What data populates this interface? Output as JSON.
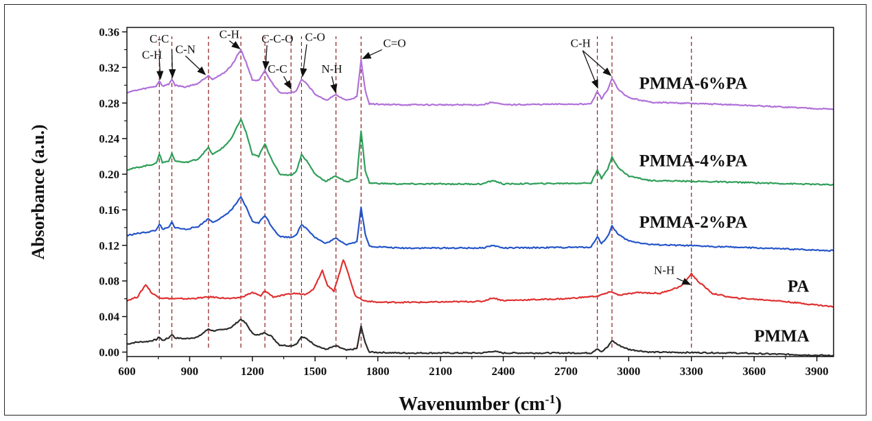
{
  "chart_data": {
    "type": "line",
    "xlabel": "Wavenumber (cm",
    "xlabel_sup": "-1",
    "xlabel_tail": ")",
    "ylabel": "Absorbance (a.u.)",
    "xlim": [
      600,
      3980
    ],
    "ylim": [
      -0.005,
      0.365
    ],
    "x_ticks": [
      600,
      900,
      1200,
      1500,
      1800,
      2100,
      2400,
      2700,
      3000,
      3300,
      3600,
      3900
    ],
    "y_ticks": [
      "0.00",
      "0.04",
      "0.08",
      "0.12",
      "0.16",
      "0.20",
      "0.24",
      "0.28",
      "0.32",
      "0.36"
    ],
    "dashed_lines_x": [
      755,
      815,
      990,
      1145,
      1260,
      1385,
      1435,
      1600,
      1720,
      2850,
      2920,
      3300
    ],
    "series": [
      {
        "name": "PMMA",
        "color": "#2b2b2b",
        "baseline": 0.0,
        "points": [
          [
            600,
            0.009
          ],
          [
            640,
            0.011
          ],
          [
            700,
            0.012
          ],
          [
            740,
            0.014
          ],
          [
            755,
            0.017
          ],
          [
            770,
            0.013
          ],
          [
            800,
            0.016
          ],
          [
            815,
            0.02
          ],
          [
            830,
            0.016
          ],
          [
            880,
            0.015
          ],
          [
            940,
            0.017
          ],
          [
            990,
            0.026
          ],
          [
            1010,
            0.024
          ],
          [
            1060,
            0.025
          ],
          [
            1100,
            0.028
          ],
          [
            1145,
            0.037
          ],
          [
            1170,
            0.032
          ],
          [
            1200,
            0.021
          ],
          [
            1230,
            0.019
          ],
          [
            1260,
            0.022
          ],
          [
            1290,
            0.018
          ],
          [
            1330,
            0.008
          ],
          [
            1385,
            0.007
          ],
          [
            1410,
            0.009
          ],
          [
            1435,
            0.017
          ],
          [
            1460,
            0.015
          ],
          [
            1500,
            0.008
          ],
          [
            1550,
            0.003
          ],
          [
            1600,
            0.007
          ],
          [
            1650,
            0.002
          ],
          [
            1700,
            0.004
          ],
          [
            1720,
            0.029
          ],
          [
            1740,
            0.01
          ],
          [
            1760,
            0.0
          ],
          [
            1900,
            -0.001
          ],
          [
            2300,
            -0.001
          ],
          [
            2350,
            0.001
          ],
          [
            2400,
            -0.001
          ],
          [
            2820,
            -0.001
          ],
          [
            2850,
            0.004
          ],
          [
            2870,
            0.0
          ],
          [
            2900,
            0.006
          ],
          [
            2920,
            0.013
          ],
          [
            2950,
            0.008
          ],
          [
            3000,
            0.003
          ],
          [
            3100,
            0.0
          ],
          [
            3500,
            -0.001
          ],
          [
            3980,
            -0.004
          ]
        ]
      },
      {
        "name": "PA",
        "color": "#e03030",
        "baseline": 0.06,
        "points": [
          [
            600,
            0.058
          ],
          [
            650,
            0.062
          ],
          [
            690,
            0.076
          ],
          [
            720,
            0.066
          ],
          [
            760,
            0.061
          ],
          [
            820,
            0.06
          ],
          [
            900,
            0.06
          ],
          [
            1000,
            0.062
          ],
          [
            1100,
            0.06
          ],
          [
            1150,
            0.062
          ],
          [
            1200,
            0.067
          ],
          [
            1240,
            0.063
          ],
          [
            1260,
            0.069
          ],
          [
            1300,
            0.062
          ],
          [
            1350,
            0.064
          ],
          [
            1400,
            0.066
          ],
          [
            1450,
            0.065
          ],
          [
            1490,
            0.07
          ],
          [
            1535,
            0.092
          ],
          [
            1560,
            0.075
          ],
          [
            1590,
            0.068
          ],
          [
            1635,
            0.104
          ],
          [
            1660,
            0.088
          ],
          [
            1690,
            0.064
          ],
          [
            1730,
            0.058
          ],
          [
            1800,
            0.056
          ],
          [
            2000,
            0.056
          ],
          [
            2300,
            0.057
          ],
          [
            2350,
            0.061
          ],
          [
            2400,
            0.058
          ],
          [
            2700,
            0.06
          ],
          [
            2850,
            0.063
          ],
          [
            2920,
            0.068
          ],
          [
            2950,
            0.064
          ],
          [
            3050,
            0.067
          ],
          [
            3150,
            0.066
          ],
          [
            3250,
            0.074
          ],
          [
            3300,
            0.088
          ],
          [
            3330,
            0.08
          ],
          [
            3400,
            0.066
          ],
          [
            3500,
            0.061
          ],
          [
            3700,
            0.058
          ],
          [
            3980,
            0.051
          ]
        ]
      },
      {
        "name": "PMMA-2%PA",
        "color": "#2454c8",
        "baseline": 0.12,
        "points": [
          [
            600,
            0.131
          ],
          [
            640,
            0.133
          ],
          [
            700,
            0.135
          ],
          [
            740,
            0.137
          ],
          [
            755,
            0.144
          ],
          [
            770,
            0.138
          ],
          [
            800,
            0.14
          ],
          [
            815,
            0.146
          ],
          [
            830,
            0.14
          ],
          [
            880,
            0.138
          ],
          [
            940,
            0.141
          ],
          [
            990,
            0.15
          ],
          [
            1010,
            0.146
          ],
          [
            1060,
            0.152
          ],
          [
            1100,
            0.16
          ],
          [
            1145,
            0.174
          ],
          [
            1170,
            0.163
          ],
          [
            1200,
            0.147
          ],
          [
            1230,
            0.145
          ],
          [
            1260,
            0.154
          ],
          [
            1290,
            0.142
          ],
          [
            1330,
            0.13
          ],
          [
            1385,
            0.129
          ],
          [
            1410,
            0.132
          ],
          [
            1435,
            0.143
          ],
          [
            1460,
            0.139
          ],
          [
            1500,
            0.129
          ],
          [
            1550,
            0.122
          ],
          [
            1600,
            0.128
          ],
          [
            1650,
            0.121
          ],
          [
            1700,
            0.124
          ],
          [
            1720,
            0.163
          ],
          [
            1740,
            0.132
          ],
          [
            1760,
            0.119
          ],
          [
            1900,
            0.117
          ],
          [
            2300,
            0.117
          ],
          [
            2350,
            0.12
          ],
          [
            2400,
            0.117
          ],
          [
            2820,
            0.118
          ],
          [
            2850,
            0.13
          ],
          [
            2870,
            0.122
          ],
          [
            2900,
            0.13
          ],
          [
            2920,
            0.142
          ],
          [
            2950,
            0.132
          ],
          [
            3000,
            0.125
          ],
          [
            3100,
            0.121
          ],
          [
            3500,
            0.118
          ],
          [
            3980,
            0.114
          ]
        ]
      },
      {
        "name": "PMMA-4%PA",
        "color": "#2e9e58",
        "baseline": 0.19,
        "points": [
          [
            600,
            0.205
          ],
          [
            640,
            0.207
          ],
          [
            700,
            0.21
          ],
          [
            740,
            0.212
          ],
          [
            755,
            0.223
          ],
          [
            770,
            0.213
          ],
          [
            800,
            0.215
          ],
          [
            815,
            0.223
          ],
          [
            830,
            0.215
          ],
          [
            880,
            0.213
          ],
          [
            940,
            0.217
          ],
          [
            990,
            0.23
          ],
          [
            1010,
            0.222
          ],
          [
            1060,
            0.23
          ],
          [
            1100,
            0.24
          ],
          [
            1145,
            0.262
          ],
          [
            1170,
            0.247
          ],
          [
            1200,
            0.222
          ],
          [
            1230,
            0.22
          ],
          [
            1260,
            0.234
          ],
          [
            1290,
            0.218
          ],
          [
            1330,
            0.2
          ],
          [
            1385,
            0.199
          ],
          [
            1410,
            0.203
          ],
          [
            1435,
            0.222
          ],
          [
            1460,
            0.215
          ],
          [
            1500,
            0.2
          ],
          [
            1550,
            0.192
          ],
          [
            1600,
            0.198
          ],
          [
            1650,
            0.191
          ],
          [
            1700,
            0.196
          ],
          [
            1720,
            0.249
          ],
          [
            1740,
            0.204
          ],
          [
            1760,
            0.19
          ],
          [
            1900,
            0.189
          ],
          [
            2300,
            0.189
          ],
          [
            2350,
            0.193
          ],
          [
            2400,
            0.189
          ],
          [
            2820,
            0.19
          ],
          [
            2850,
            0.205
          ],
          [
            2870,
            0.195
          ],
          [
            2900,
            0.206
          ],
          [
            2920,
            0.22
          ],
          [
            2950,
            0.207
          ],
          [
            3000,
            0.198
          ],
          [
            3100,
            0.193
          ],
          [
            3500,
            0.191
          ],
          [
            3980,
            0.188
          ]
        ]
      },
      {
        "name": "PMMA-6%PA",
        "color": "#b070d8",
        "baseline": 0.28,
        "points": [
          [
            600,
            0.292
          ],
          [
            640,
            0.294
          ],
          [
            700,
            0.297
          ],
          [
            740,
            0.299
          ],
          [
            755,
            0.305
          ],
          [
            770,
            0.299
          ],
          [
            800,
            0.301
          ],
          [
            815,
            0.307
          ],
          [
            830,
            0.3
          ],
          [
            880,
            0.298
          ],
          [
            940,
            0.302
          ],
          [
            990,
            0.311
          ],
          [
            1010,
            0.307
          ],
          [
            1060,
            0.313
          ],
          [
            1100,
            0.322
          ],
          [
            1145,
            0.34
          ],
          [
            1170,
            0.326
          ],
          [
            1200,
            0.306
          ],
          [
            1230,
            0.305
          ],
          [
            1260,
            0.316
          ],
          [
            1290,
            0.304
          ],
          [
            1330,
            0.292
          ],
          [
            1385,
            0.291
          ],
          [
            1410,
            0.294
          ],
          [
            1435,
            0.307
          ],
          [
            1460,
            0.302
          ],
          [
            1500,
            0.29
          ],
          [
            1550,
            0.283
          ],
          [
            1600,
            0.289
          ],
          [
            1650,
            0.283
          ],
          [
            1700,
            0.287
          ],
          [
            1720,
            0.328
          ],
          [
            1740,
            0.294
          ],
          [
            1760,
            0.279
          ],
          [
            1900,
            0.278
          ],
          [
            2300,
            0.278
          ],
          [
            2350,
            0.281
          ],
          [
            2400,
            0.278
          ],
          [
            2820,
            0.279
          ],
          [
            2850,
            0.293
          ],
          [
            2870,
            0.285
          ],
          [
            2900,
            0.295
          ],
          [
            2920,
            0.308
          ],
          [
            2950,
            0.295
          ],
          [
            3000,
            0.286
          ],
          [
            3100,
            0.281
          ],
          [
            3500,
            0.278
          ],
          [
            3980,
            0.273
          ]
        ]
      }
    ],
    "series_labels": [
      {
        "text": "PMMA-6%PA",
        "x": 3050,
        "y": 0.296
      },
      {
        "text": "PMMA-4%PA",
        "x": 3050,
        "y": 0.209
      },
      {
        "text": "PMMA-2%PA",
        "x": 3050,
        "y": 0.14
      },
      {
        "text": "PA",
        "x": 3760,
        "y": 0.068
      },
      {
        "text": "PMMA",
        "x": 3600,
        "y": 0.012
      }
    ],
    "annotations": [
      {
        "text": "C-C",
        "x": 755,
        "y": 0.348
      },
      {
        "text": "C-H",
        "x": 720,
        "y": 0.33
      },
      {
        "text": "C-N",
        "x": 880,
        "y": 0.336
      },
      {
        "text": "C-H",
        "x": 1090,
        "y": 0.353
      },
      {
        "text": "C-C-O",
        "x": 1320,
        "y": 0.348
      },
      {
        "text": "C-C",
        "x": 1320,
        "y": 0.314
      },
      {
        "text": "C-O",
        "x": 1500,
        "y": 0.35
      },
      {
        "text": "N-H",
        "x": 1580,
        "y": 0.314
      },
      {
        "text": "C=O",
        "x": 1880,
        "y": 0.343
      },
      {
        "text": "C-H",
        "x": 2770,
        "y": 0.343
      },
      {
        "text": "N-H",
        "x": 3170,
        "y": 0.088
      }
    ]
  }
}
